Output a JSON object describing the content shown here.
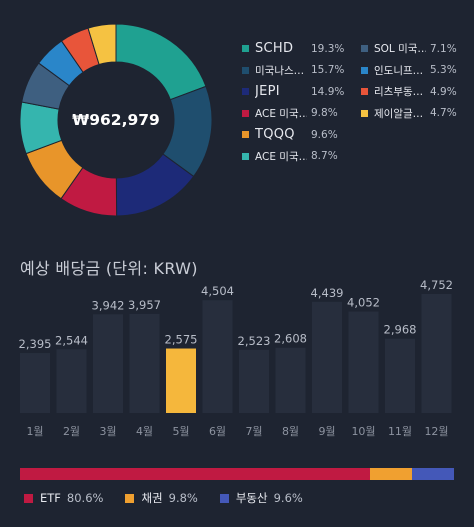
{
  "holdings": {
    "total_label": "₩962,979",
    "items": [
      {
        "name": "SCHD",
        "pct": "19.3%",
        "value": 19.3,
        "color": "#1fa191",
        "big": true
      },
      {
        "name": "미국나스…",
        "pct": "15.7%",
        "value": 15.7,
        "color": "#1f4e6e",
        "big": false
      },
      {
        "name": "JEPI",
        "pct": "14.9%",
        "value": 14.9,
        "color": "#1d2a78",
        "big": true
      },
      {
        "name": "ACE 미국…",
        "pct": "9.8%",
        "value": 9.8,
        "color": "#c01a42",
        "big": false
      },
      {
        "name": "TQQQ",
        "pct": "9.6%",
        "value": 9.6,
        "color": "#e8952a",
        "big": true
      },
      {
        "name": "ACE 미국…",
        "pct": "8.7%",
        "value": 8.7,
        "color": "#35b5ae",
        "big": false
      },
      {
        "name": "SOL 미국…",
        "pct": "7.1%",
        "value": 7.1,
        "color": "#3e5f80",
        "big": false
      },
      {
        "name": "인도니프…",
        "pct": "5.3%",
        "value": 5.3,
        "color": "#2a86c9",
        "big": false
      },
      {
        "name": "리츠부동…",
        "pct": "4.9%",
        "value": 4.9,
        "color": "#e8553a",
        "big": false
      },
      {
        "name": "제이알글…",
        "pct": "4.7%",
        "value": 4.7,
        "color": "#f5c242",
        "big": false
      }
    ]
  },
  "dividends": {
    "title": "예상 배당금 (단위: KRW)",
    "highlight_color": "#f5b73c",
    "bar_color": "#272e3d",
    "highlight_index": 4
  },
  "chart_data": {
    "type": "bar",
    "title": "예상 배당금 (단위: KRW)",
    "categories": [
      "1월",
      "2월",
      "3월",
      "4월",
      "5월",
      "6월",
      "7월",
      "8월",
      "9월",
      "10월",
      "11월",
      "12월"
    ],
    "values": [
      2395,
      2544,
      3942,
      3957,
      2575,
      4504,
      2523,
      2608,
      4439,
      4052,
      2968,
      4752
    ],
    "labels": [
      "2,395",
      "2,544",
      "3,942",
      "3,957",
      "2,575",
      "4,504",
      "2,523",
      "2,608",
      "4,439",
      "4,052",
      "2,968",
      "4,752"
    ]
  },
  "allocation": {
    "items": [
      {
        "name": "ETF",
        "pct": "80.6%",
        "value": 80.6,
        "color": "#c01a42"
      },
      {
        "name": "채권",
        "pct": "9.8%",
        "value": 9.8,
        "color": "#f0a030"
      },
      {
        "name": "부동산",
        "pct": "9.6%",
        "value": 9.6,
        "color": "#4458b8"
      }
    ]
  }
}
